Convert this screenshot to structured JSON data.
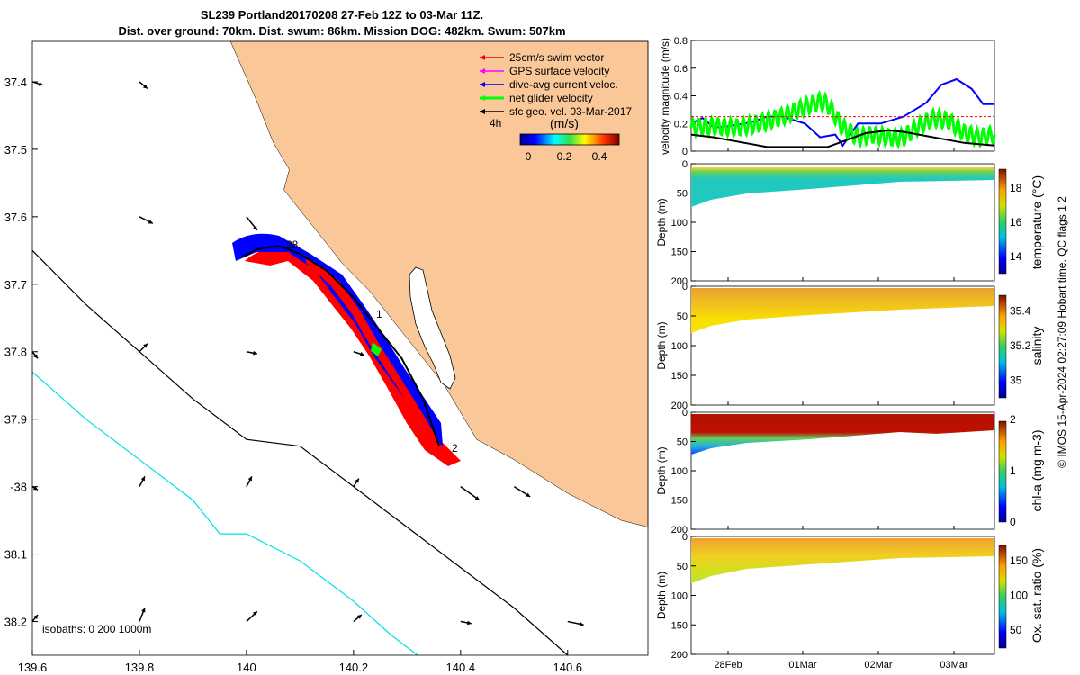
{
  "title": {
    "line1": "SL239 Portland20170208 27-Feb 12Z to 03-Mar 11Z.",
    "line2": "Dist. over ground: 70km. Dist. swum: 86km. Mission DOG: 482km. Swum: 507km"
  },
  "colors": {
    "land": "#fac898",
    "swim": "#ff0000",
    "gps": "#ff00ff",
    "dive": "#0000ff",
    "net": "#00ff00",
    "geo": "#000000",
    "shelf": "#00e0e0"
  },
  "chart_data": [
    {
      "type": "map",
      "xlim": [
        139.6,
        140.75
      ],
      "ylim": [
        -38.25,
        -37.34
      ],
      "x_ticks": [
        139.6,
        139.8,
        140,
        140.2,
        140.4,
        140.6
      ],
      "x_tick_labels": [
        "139.6",
        "139.8",
        "140",
        "140.2",
        "140.4",
        "140.6"
      ],
      "y_ticks": [
        -37.4,
        -37.5,
        -37.6,
        -37.7,
        -37.8,
        -37.9,
        -38,
        -38.1,
        -38.2
      ],
      "y_tick_labels": [
        "37.4",
        "37.5",
        "37.6",
        "37.7",
        "37.8",
        "37.9",
        "-38",
        "38.1",
        "38.2"
      ],
      "legend": [
        {
          "label": "25cm/s swim vector",
          "color": "#ff0000"
        },
        {
          "label": "GPS surface velocity",
          "color": "#ff00ff"
        },
        {
          "label": "dive-avg current veloc.",
          "color": "#0000ff"
        },
        {
          "label": "net glider velocity",
          "color": "#00ff00"
        },
        {
          "label": "sfc geo. vel. 03-Mar-2017",
          "color": "#000000"
        }
      ],
      "legend_placement": "top-right",
      "colorbar": {
        "unit": "(m/s)",
        "note": "4h",
        "ticks": [
          "0",
          "0.2",
          "0.4"
        ],
        "range": [
          0,
          0.5
        ]
      },
      "track_labels": [
        "28",
        "1",
        "2"
      ],
      "track": [
        [
          140.36,
          -37.94
        ],
        [
          140.33,
          -37.87
        ],
        [
          140.29,
          -37.81
        ],
        [
          140.24,
          -37.76
        ],
        [
          140.2,
          -37.72
        ],
        [
          140.15,
          -37.68
        ],
        [
          140.1,
          -37.655
        ],
        [
          140.06,
          -37.643
        ],
        [
          140.02,
          -37.648
        ],
        [
          139.99,
          -37.66
        ]
      ],
      "coastline": [
        [
          140.75,
          -37.34
        ],
        [
          140.75,
          -38.06
        ],
        [
          140.7,
          -38.05
        ],
        [
          140.6,
          -38.01
        ],
        [
          140.5,
          -37.96
        ],
        [
          140.43,
          -37.93
        ],
        [
          140.37,
          -37.85
        ],
        [
          140.29,
          -37.77
        ],
        [
          140.23,
          -37.71
        ],
        [
          140.18,
          -37.67
        ],
        [
          140.14,
          -37.63
        ],
        [
          140.1,
          -37.59
        ],
        [
          140.07,
          -37.56
        ],
        [
          140.08,
          -37.53
        ],
        [
          140.05,
          -37.49
        ],
        [
          140.02,
          -37.43
        ],
        [
          139.97,
          -37.34
        ]
      ],
      "isobath_200": [
        [
          139.6,
          -37.65
        ],
        [
          139.7,
          -37.73
        ],
        [
          139.8,
          -37.8
        ],
        [
          139.9,
          -37.87
        ],
        [
          140,
          -37.93
        ],
        [
          140.1,
          -37.94
        ],
        [
          140.2,
          -38.0
        ],
        [
          140.3,
          -38.06
        ],
        [
          140.4,
          -38.12
        ],
        [
          140.5,
          -38.18
        ],
        [
          140.6,
          -38.25
        ]
      ],
      "isobath_1000": [
        [
          139.6,
          -37.83
        ],
        [
          139.7,
          -37.9
        ],
        [
          139.8,
          -37.96
        ],
        [
          139.9,
          -38.02
        ],
        [
          139.95,
          -38.07
        ],
        [
          140.0,
          -38.07
        ],
        [
          140.1,
          -38.11
        ],
        [
          140.2,
          -38.17
        ],
        [
          140.27,
          -38.22
        ],
        [
          140.32,
          -38.25
        ]
      ],
      "geo_vectors": [
        [
          139.6,
          -37.4,
          0.02,
          -0.005
        ],
        [
          139.8,
          -37.4,
          0.015,
          -0.01
        ],
        [
          139.8,
          -37.6,
          0.025,
          -0.01
        ],
        [
          140,
          -37.6,
          0.02,
          -0.02
        ],
        [
          139.6,
          -37.8,
          0.01,
          -0.01
        ],
        [
          139.8,
          -37.8,
          0.015,
          0.012
        ],
        [
          140,
          -37.8,
          0.02,
          -0.003
        ],
        [
          140.2,
          -37.8,
          0.02,
          -0.005
        ],
        [
          139.6,
          -38,
          0.01,
          -0.005
        ],
        [
          139.8,
          -38,
          0.01,
          0.015
        ],
        [
          140,
          -38,
          0.01,
          0.015
        ],
        [
          140.2,
          -38,
          0.01,
          0.012
        ],
        [
          140.4,
          -38,
          0.035,
          -0.02
        ],
        [
          140.5,
          -38,
          0.03,
          -0.015
        ],
        [
          139.6,
          -38.2,
          0.01,
          0.01
        ],
        [
          139.8,
          -38.2,
          0.01,
          0.02
        ],
        [
          140,
          -38.2,
          0.02,
          0.015
        ],
        [
          140.2,
          -38.2,
          0.015,
          0.01
        ],
        [
          140.4,
          -38.2,
          0.02,
          -0.003
        ],
        [
          140.6,
          -38.2,
          0.03,
          -0.005
        ]
      ],
      "isobath_legend": "isobaths: 0   200  1000m"
    },
    {
      "type": "line",
      "ylabel": "velocity magnitude (m/s)",
      "ylim": [
        0,
        0.8
      ],
      "y_ticks": [
        "0",
        "0.2",
        "0.4",
        "0.6",
        "0.8"
      ],
      "x_range_days": [
        0,
        4
      ],
      "series": [
        {
          "name": "dive-avg current",
          "color": "#0000ff",
          "t": [
            0,
            0.15,
            0.3,
            0.5,
            0.8,
            1.0,
            1.2,
            1.5,
            1.7,
            1.9,
            2.0,
            2.2,
            2.5,
            2.8,
            3.1,
            3.3,
            3.5,
            3.7,
            3.85,
            4.0
          ],
          "v": [
            0.2,
            0.24,
            0.17,
            0.18,
            0.21,
            0.25,
            0.25,
            0.2,
            0.1,
            0.12,
            0.04,
            0.2,
            0.2,
            0.25,
            0.35,
            0.48,
            0.52,
            0.45,
            0.34,
            0.34
          ]
        },
        {
          "name": "net glider",
          "color": "#00ff00",
          "t": [
            0,
            0.3,
            0.6,
            0.9,
            1.2,
            1.5,
            1.7,
            1.8,
            2.0,
            2.2,
            2.4,
            2.6,
            2.8,
            3.0,
            3.2,
            3.4,
            3.6,
            3.8,
            4.0
          ],
          "v": [
            0.17,
            0.18,
            0.17,
            0.2,
            0.25,
            0.32,
            0.36,
            0.34,
            0.17,
            0.1,
            0.12,
            0.1,
            0.1,
            0.18,
            0.24,
            0.22,
            0.13,
            0.1,
            0.12
          ]
        },
        {
          "name": "sfc geo",
          "color": "#000000",
          "t": [
            0,
            0.3,
            0.6,
            1.0,
            1.4,
            1.8,
            2.0,
            2.3,
            2.6,
            2.8,
            3.0,
            3.3,
            3.6,
            4.0
          ],
          "v": [
            0.12,
            0.1,
            0.07,
            0.03,
            0.03,
            0.03,
            0.07,
            0.13,
            0.15,
            0.14,
            0.12,
            0.09,
            0.06,
            0.04
          ]
        },
        {
          "name": "swim",
          "color": "#ff0000",
          "t": [
            0,
            4
          ],
          "v": [
            0.25,
            0.25
          ]
        }
      ]
    },
    {
      "type": "heatmap",
      "ylabel": "Depth (m)",
      "cbar_label": "temperature (°C)",
      "cbar_ticks": [
        "14",
        "16",
        "18"
      ],
      "y_ticks": [
        "0",
        "50",
        "100",
        "150",
        "200"
      ]
    },
    {
      "type": "heatmap",
      "ylabel": "Depth (m)",
      "cbar_label": "salinity",
      "cbar_ticks": [
        "35",
        "35.2",
        "35.4"
      ],
      "y_ticks": [
        "0",
        "50",
        "100",
        "150",
        "200"
      ]
    },
    {
      "type": "heatmap",
      "ylabel": "Depth (m)",
      "cbar_label": "chl-a (mg m-3)",
      "cbar_ticks": [
        "0",
        "1",
        "2"
      ],
      "y_ticks": [
        "0",
        "50",
        "100",
        "150",
        "200"
      ]
    },
    {
      "type": "heatmap",
      "ylabel": "Depth (m)",
      "cbar_label": "Ox. sat. ratio (%)",
      "cbar_ticks": [
        "50",
        "100",
        "150"
      ],
      "y_ticks": [
        "0",
        "50",
        "100",
        "150",
        "200"
      ],
      "x_tick_labels": [
        "28Feb",
        "01Mar",
        "02Mar",
        "03Mar"
      ]
    }
  ],
  "footer": "© IMOS 15-Apr-2024 02:27:09 Hobart time. QC flags 1  2"
}
